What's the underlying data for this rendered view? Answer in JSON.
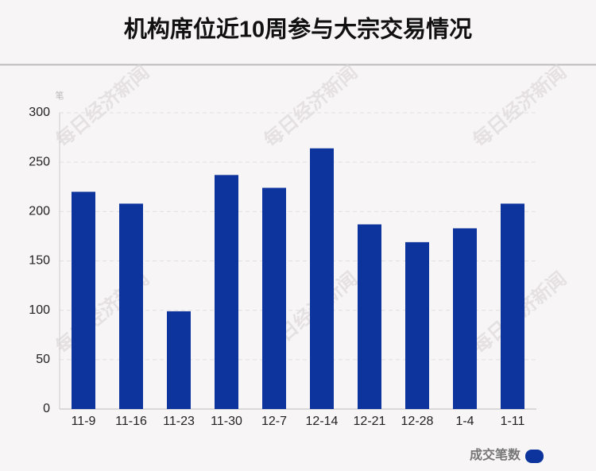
{
  "chart_data": {
    "type": "bar",
    "title": "机构席位近10周参与大宗交易情况",
    "y_unit": "笔",
    "categories": [
      "11-9",
      "11-16",
      "11-23",
      "11-30",
      "12-7",
      "12-14",
      "12-21",
      "12-28",
      "1-4",
      "1-11"
    ],
    "series": [
      {
        "name": "成交笔数",
        "color": "#0c349c",
        "values": [
          220,
          208,
          99,
          237,
          224,
          264,
          187,
          169,
          183,
          208
        ]
      }
    ],
    "ylim": [
      0,
      300
    ],
    "yticks": [
      0,
      50,
      100,
      150,
      200,
      250,
      300
    ],
    "grid": true,
    "legend": "bottom-right",
    "watermark": "每日经济新闻"
  }
}
